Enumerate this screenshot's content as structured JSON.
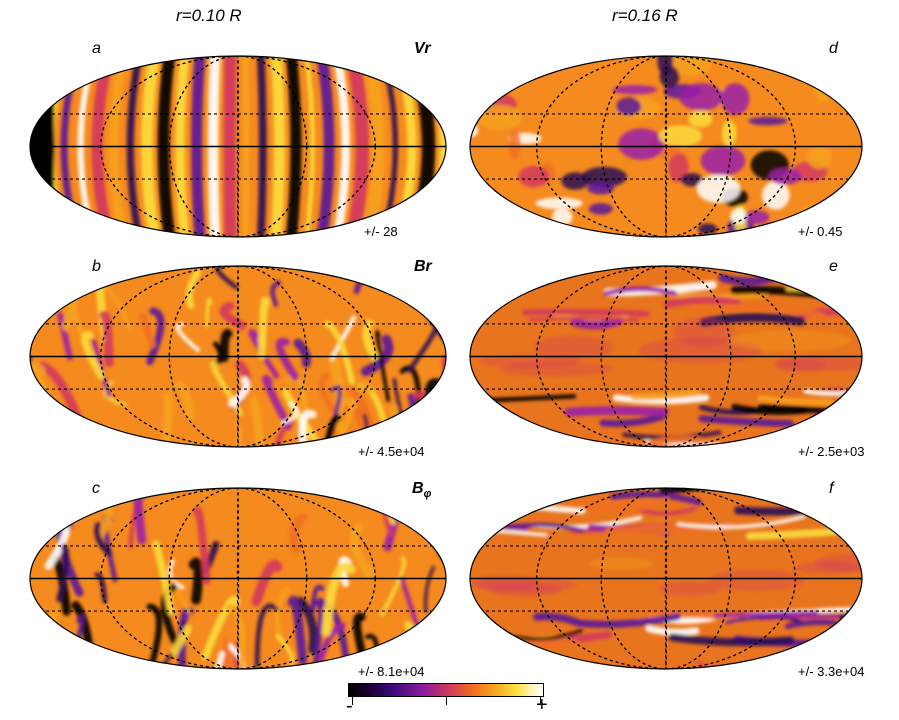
{
  "columns": [
    {
      "title": "r=0.10 R"
    },
    {
      "title": "r=0.16 R"
    }
  ],
  "panels": [
    {
      "letter": "a",
      "field": "Vr",
      "range": "+/- 28"
    },
    {
      "letter": "d",
      "field": "",
      "range": "+/- 0.45"
    },
    {
      "letter": "b",
      "field": "Br",
      "range": "+/- 4.5e+04"
    },
    {
      "letter": "e",
      "field": "",
      "range": "+/- 2.5e+03"
    },
    {
      "letter": "c",
      "field": "B",
      "field_sub": "φ",
      "range": "+/- 8.1e+04"
    },
    {
      "letter": "f",
      "field": "",
      "range": "+/- 3.3e+04"
    }
  ],
  "colorbar": {
    "minus": "-",
    "plus": "+"
  }
}
